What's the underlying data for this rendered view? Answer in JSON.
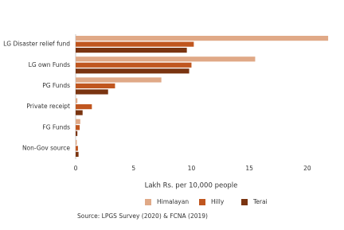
{
  "chart_data": {
    "type": "hbar",
    "categories": [
      "LG Disaster relief fund",
      "LG own Funds",
      "PG Funds",
      "Private receipt",
      "FG Funds",
      "Non-Gov source"
    ],
    "series": [
      {
        "name": "Himalayan",
        "color": "#e0a987",
        "values": [
          21.8,
          15.5,
          7.4,
          0.15,
          0.4,
          0.1
        ]
      },
      {
        "name": "Hilly",
        "color": "#c0561f",
        "values": [
          10.2,
          10.0,
          3.4,
          1.4,
          0.35,
          0.2
        ]
      },
      {
        "name": "Terai",
        "color": "#7a3410",
        "values": [
          9.6,
          9.8,
          2.8,
          0.6,
          0.15,
          0.25
        ]
      }
    ],
    "xlim": [
      0,
      22
    ],
    "xticks": [
      0,
      5,
      10,
      15,
      20
    ],
    "x_label": "Lakh Rs. per 10,000 people",
    "source": "Source: LPGS Survey (2020) & FCNA (2019)",
    "grid": false
  }
}
